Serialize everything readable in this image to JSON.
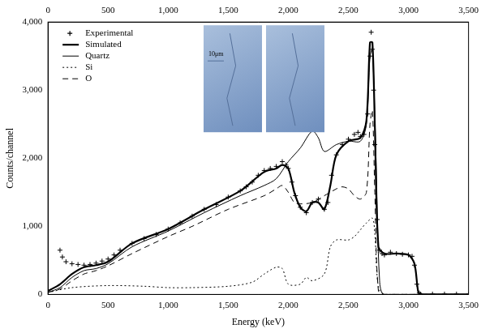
{
  "chart_data": {
    "type": "line",
    "x_label": "Energy (keV)",
    "y_label": "Counts/channel",
    "xlim": [
      0,
      3500
    ],
    "xticks": [
      0,
      500,
      1000,
      1500,
      2000,
      2500,
      3000,
      3500
    ],
    "ylim": [
      0,
      4000
    ],
    "yticks": [
      0,
      1000,
      2000,
      3000,
      4000
    ],
    "grid": false,
    "legend": "top-left",
    "annotations": [
      "10μm"
    ],
    "series": [
      {
        "name": "Experimental",
        "type": "scatter",
        "marker": "cross",
        "color": "#000000",
        "x": [
          100,
          120,
          150,
          200,
          250,
          300,
          350,
          400,
          450,
          500,
          550,
          600,
          700,
          800,
          900,
          1000,
          1100,
          1200,
          1300,
          1400,
          1500,
          1600,
          1650,
          1700,
          1750,
          1800,
          1850,
          1900,
          1950,
          1980,
          2000,
          2030,
          2060,
          2100,
          2150,
          2200,
          2250,
          2300,
          2330,
          2360,
          2400,
          2450,
          2500,
          2550,
          2580,
          2600,
          2630,
          2660,
          2680,
          2690,
          2700,
          2710,
          2720,
          2740,
          2760,
          2780,
          2800,
          2850,
          2900,
          2950,
          3000,
          3030,
          3050,
          3070,
          3090,
          3100,
          3200,
          3300,
          3400,
          3500
        ],
        "values": [
          650,
          550,
          480,
          450,
          440,
          430,
          440,
          460,
          490,
          520,
          580,
          650,
          750,
          820,
          880,
          960,
          1050,
          1150,
          1250,
          1320,
          1430,
          1520,
          1580,
          1650,
          1750,
          1820,
          1850,
          1880,
          1950,
          1900,
          1850,
          1650,
          1450,
          1280,
          1200,
          1350,
          1400,
          1250,
          1350,
          1750,
          2050,
          2200,
          2280,
          2350,
          2380,
          2320,
          2350,
          2650,
          3500,
          3850,
          3600,
          3000,
          2200,
          1100,
          650,
          600,
          580,
          620,
          600,
          590,
          580,
          560,
          430,
          150,
          20,
          5,
          5,
          5,
          5,
          5
        ]
      },
      {
        "name": "Simulated",
        "type": "line",
        "line_style": "solid",
        "color": "#000000",
        "x": [
          0,
          100,
          200,
          300,
          400,
          500,
          700,
          1000,
          1300,
          1600,
          1800,
          1900,
          1950,
          2000,
          2050,
          2100,
          2150,
          2200,
          2250,
          2300,
          2350,
          2400,
          2500,
          2600,
          2650,
          2680,
          2700,
          2720,
          2750,
          2800,
          2900,
          3000,
          3050,
          3080,
          3100,
          3500
        ],
        "values": [
          50,
          150,
          300,
          400,
          430,
          480,
          750,
          960,
          1250,
          1520,
          1800,
          1850,
          1900,
          1850,
          1500,
          1280,
          1220,
          1350,
          1350,
          1250,
          1600,
          2050,
          2250,
          2300,
          2550,
          3700,
          3700,
          2500,
          700,
          600,
          600,
          580,
          450,
          50,
          0,
          0
        ]
      },
      {
        "name": "Quartz",
        "type": "line",
        "line_style": "solid",
        "color": "#000000",
        "x": [
          0,
          100,
          200,
          300,
          400,
          500,
          700,
          1000,
          1300,
          1600,
          1800,
          1900,
          2000,
          2100,
          2200,
          2250,
          2300,
          2400,
          2500,
          2600,
          2650,
          2680,
          2700,
          2730,
          2760,
          2800,
          3500
        ],
        "values": [
          30,
          100,
          250,
          350,
          380,
          450,
          700,
          930,
          1200,
          1450,
          1600,
          1700,
          1950,
          2150,
          2400,
          2300,
          2100,
          2200,
          2250,
          2250,
          2500,
          3500,
          3600,
          2000,
          200,
          0,
          0
        ]
      },
      {
        "name": "Si",
        "type": "line",
        "line_style": "dotted",
        "color": "#000000",
        "x": [
          0,
          200,
          500,
          800,
          1000,
          1200,
          1500,
          1700,
          1800,
          1900,
          1950,
          2000,
          2100,
          2150,
          2200,
          2300,
          2350,
          2400,
          2500,
          2550,
          2600,
          2650,
          2700,
          2720,
          2750,
          2800,
          3500
        ],
        "values": [
          30,
          100,
          130,
          120,
          100,
          100,
          120,
          180,
          300,
          400,
          380,
          150,
          150,
          250,
          200,
          300,
          700,
          800,
          800,
          850,
          950,
          1050,
          1120,
          900,
          100,
          0,
          0
        ]
      },
      {
        "name": "O",
        "type": "line",
        "line_style": "dashed",
        "color": "#000000",
        "x": [
          0,
          100,
          200,
          300,
          400,
          500,
          700,
          1000,
          1200,
          1500,
          1800,
          1900,
          1950,
          2000,
          2050,
          2100,
          2200,
          2300,
          2400,
          2450,
          2500,
          2550,
          2600,
          2650,
          2680,
          2700,
          2720,
          2750,
          2800,
          3500
        ],
        "values": [
          30,
          80,
          200,
          300,
          350,
          420,
          600,
          850,
          1000,
          1250,
          1450,
          1550,
          1600,
          1500,
          1350,
          1330,
          1350,
          1450,
          1550,
          1580,
          1550,
          1450,
          1400,
          1500,
          2500,
          2700,
          1500,
          50,
          0,
          0
        ]
      }
    ]
  }
}
